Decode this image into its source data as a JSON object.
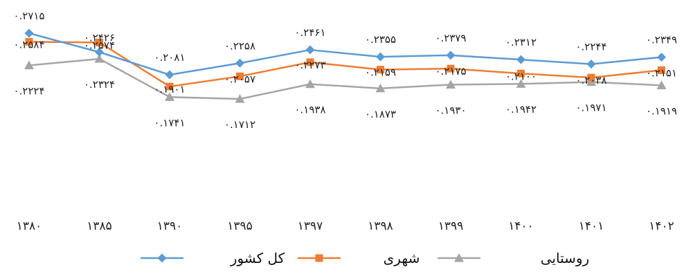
{
  "chart_data": {
    "type": "line",
    "categories": [
      "۱۳۸۰",
      "۱۳۸۵",
      "۱۳۹۰",
      "۱۳۹۵",
      "۱۳۹۷",
      "۱۳۹۸",
      "۱۳۹۹",
      "۱۴۰۰",
      "۱۴۰۱",
      "۱۴۰۲"
    ],
    "grid": false,
    "legend_position": "bottom",
    "series": [
      {
        "name": "کل کشور",
        "color": "#5b9bd5",
        "marker": "diamond",
        "values": [
          0.2715,
          0.2426,
          0.2081,
          0.2258,
          0.2461,
          0.2355,
          0.2379,
          0.2312,
          0.2244,
          0.2349
        ],
        "labels": [
          "۰.۲۷۱۵",
          "",
          "۰.۲۰۸۱",
          "۰.۲۲۵۸",
          "۰.۲۴۶۱",
          "۰.۲۳۵۵",
          "۰.۲۳۷۹",
          "۰.۲۳۱۲",
          "۰.۲۲۴۴",
          "۰.۲۳۴۹"
        ]
      },
      {
        "name": "شهری",
        "color": "#ed7d31",
        "marker": "square",
        "values": [
          0.2584,
          0.2574,
          0.1901,
          0.2057,
          0.2273,
          0.2159,
          0.2175,
          0.21,
          0.2038,
          0.2151
        ],
        "labels": [
          "۰.۲۵۸۴",
          "۰.۲۵۷۴",
          "۰.۱۹۰۱",
          "۰.۲۰۵۷",
          "۰.۲۲۷۳",
          "۰.۲۱۵۹",
          "۰.۲۱۷۵",
          "۰.۲۱۰۰",
          "۰.۲۰۳۸",
          "۰.۲۱۵۱"
        ]
      },
      {
        "name": "روستایی",
        "color": "#a5a5a5",
        "marker": "triangle",
        "values": [
          0.2224,
          0.2324,
          0.1741,
          0.1712,
          0.1938,
          0.1873,
          0.193,
          0.1942,
          0.1971,
          0.1919
        ],
        "labels": [
          "۰.۲۲۲۴",
          "۰.۲۳۲۴",
          "۰.۱۷۴۱",
          "۰.۱۷۱۲",
          "۰.۱۹۳۸",
          "۰.۱۸۷۳",
          "۰.۱۹۳۰",
          "۰.۱۹۴۲",
          "۰.۱۹۷۱",
          "۰.۱۹۱۹"
        ]
      }
    ],
    "extra_labels": [
      {
        "series_index": 1,
        "point_index": 1,
        "text": "۰.۲۴۲۶"
      }
    ]
  }
}
